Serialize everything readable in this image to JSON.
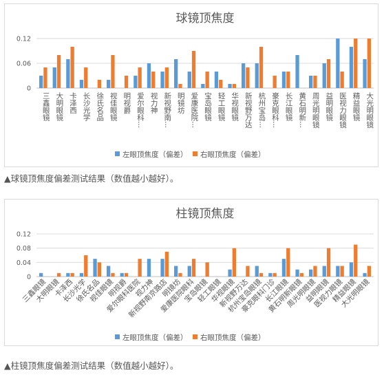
{
  "captions": [
    "▲球镜顶焦度偏差测试结果（数值越小越好）。",
    "▲柱镜顶焦度偏差测试结果（数值越小越好）。"
  ],
  "colors": {
    "left": "#5b9bd5",
    "right": "#ed7d31",
    "grid": "#d9d9d9",
    "axis": "#bfbfbf"
  },
  "chart_data": [
    {
      "type": "bar",
      "title": "球镜顶焦度",
      "ylim": [
        0,
        0.12
      ],
      "yticks": [
        "0",
        "0.06",
        "0.12"
      ],
      "grid": true,
      "legend_position": "bottom",
      "categories": [
        "三鑫眼镜",
        "大明眼镜",
        "卡泽西",
        "长沙光学",
        "徐氏名品",
        "视佳眼镜",
        "明视爵",
        "爱尔眼科...",
        "视力神",
        "新视野南...",
        "明镜坊",
        "爱康医院...",
        "宝岛眼镜",
        "轻工眼镜",
        "华视眼镜",
        "新视野万达",
        "杭州宝岛...",
        "豪克眼科...",
        "长江眼镜",
        "黄石明新...",
        "周光明眼镜",
        "益明眼镜",
        "医视力眼镜",
        "精益眼镜",
        "大光明眼镜"
      ],
      "series": [
        {
          "name": "左眼顶焦度（偏差）",
          "values": [
            0.03,
            0.05,
            0.07,
            0.02,
            0,
            0.02,
            0,
            0.03,
            0.06,
            0.04,
            0.07,
            0.04,
            0.01,
            0.04,
            0.01,
            0.06,
            0.06,
            0,
            0.04,
            0.08,
            0.03,
            0.06,
            0.12,
            0.1,
            0.07
          ]
        },
        {
          "name": "右眼顶焦度（偏差）",
          "values": [
            0.05,
            0.08,
            0.1,
            0.05,
            0.02,
            0.08,
            0.03,
            0.05,
            0.04,
            0.05,
            0.01,
            0.09,
            0.04,
            0.02,
            0.01,
            0.05,
            0.1,
            0.03,
            0.04,
            0,
            0.03,
            0.07,
            0.04,
            0.12,
            0.12
          ]
        }
      ]
    },
    {
      "type": "bar",
      "title": "柱镜顶焦度",
      "ylim": [
        0,
        0.12
      ],
      "yticks": [
        "0",
        "0.04",
        "0.08",
        "0.12"
      ],
      "grid": true,
      "legend_position": "bottom",
      "categories": [
        "三鑫眼镜",
        "大明眼镜",
        "卡泽西",
        "长沙光学",
        "徐氏名品",
        "视佳眼镜",
        "明视爵",
        "爱尔眼科医院",
        "视力神",
        "新视野南京路店",
        "明镜坊",
        "爱康医院眼科",
        "宝岛眼镜",
        "轻工眼镜",
        "华视眼镜",
        "新视野万达",
        "杭州宝岛眼镜",
        "豪克眼科门诊",
        "长江眼镜",
        "黄石明新眼镜",
        "周光明眼镜",
        "益明眼镜",
        "医视力眼镜",
        "精益眼镜",
        "大光明眼镜"
      ],
      "series": [
        {
          "name": "左眼顶焦度（偏差）",
          "values": [
            0.01,
            0,
            0.01,
            0.01,
            0.05,
            0.03,
            0.01,
            0,
            0.05,
            0.05,
            0.03,
            0.03,
            0,
            0,
            0.02,
            0,
            0.03,
            0.01,
            0.05,
            0.02,
            0.02,
            0.03,
            0.03,
            0.04,
            0.01
          ]
        },
        {
          "name": "右眼顶焦度（偏差）",
          "values": [
            0,
            0.01,
            0.01,
            0.06,
            0.04,
            0.01,
            0.01,
            0.05,
            0,
            0.07,
            0.01,
            0.05,
            0.04,
            0,
            0.08,
            0.03,
            0.01,
            0.01,
            0.08,
            0.01,
            0.03,
            0.08,
            0.03,
            0.09,
            0.03
          ]
        }
      ]
    }
  ]
}
